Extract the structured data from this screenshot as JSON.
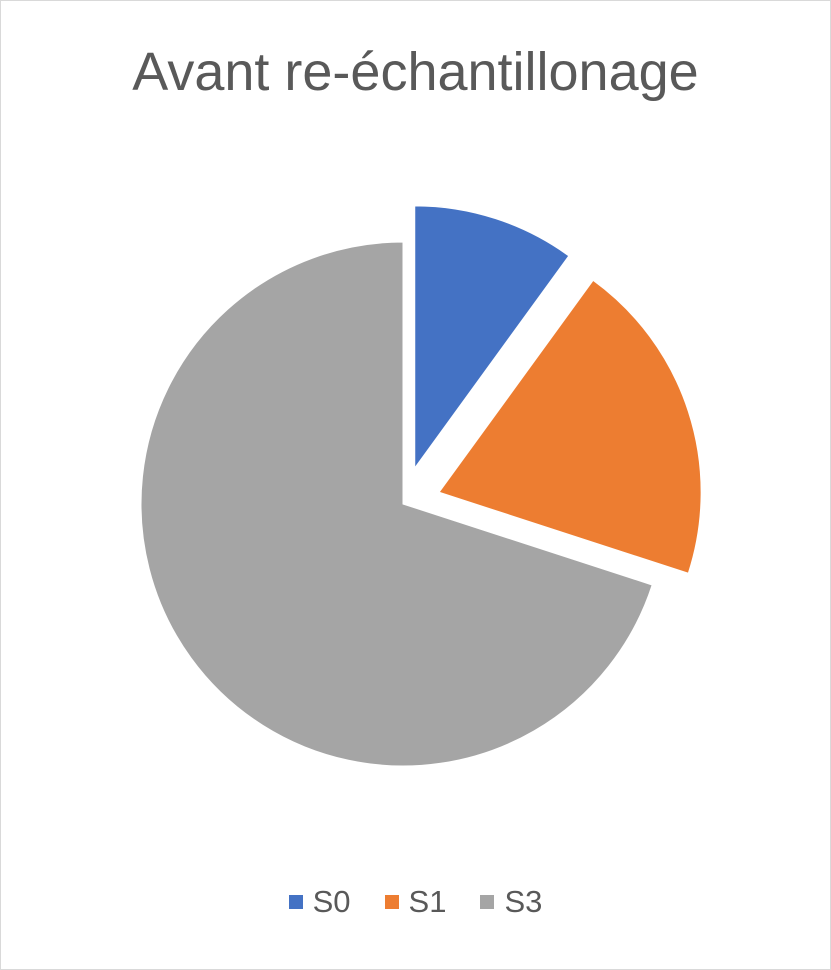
{
  "chart_data": {
    "type": "pie",
    "title": "Avant re-échantillonage",
    "categories": [
      "S0",
      "S1",
      "S3"
    ],
    "values": [
      10,
      20,
      70
    ],
    "colors": [
      "#4472c4",
      "#ed7d31",
      "#a5a5a5"
    ],
    "exploded": [
      true,
      true,
      false
    ],
    "start_angle_deg": 0,
    "legend_position": "bottom"
  }
}
